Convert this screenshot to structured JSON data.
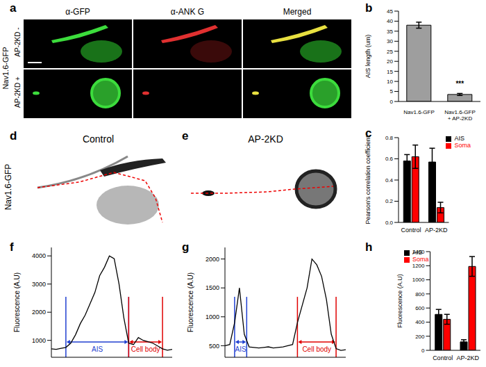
{
  "panels": {
    "a": {
      "label": "a",
      "columns": [
        "α-GFP",
        "α-ANK G",
        "Merged"
      ],
      "row_group": "Nav1.6-GFP",
      "rows": [
        "AP-2KD -",
        "AP-2KD +"
      ]
    },
    "d": {
      "label": "d",
      "title": "Control",
      "row_label": "Nav1.6-GFP"
    },
    "e": {
      "label": "e",
      "title": "AP-2KD"
    }
  },
  "chart_data": [
    {
      "panel": "b",
      "type": "bar",
      "categories": [
        "Nav1.6-GFP",
        "Nav1.6-GFP + AP-2KD"
      ],
      "values": [
        38,
        3.5
      ],
      "errors": [
        1.5,
        0.5
      ],
      "color": "#9e9e9e",
      "y_label": "AIS length (um)",
      "ylim": [
        0,
        45
      ],
      "yticks": [
        0,
        5,
        10,
        15,
        20,
        25,
        30,
        35,
        40,
        45
      ],
      "annotations": [
        {
          "category": "Nav1.6-GFP + AP-2KD",
          "text": "***"
        }
      ]
    },
    {
      "panel": "c",
      "type": "bar",
      "categories": [
        "Control",
        "AP-2KD"
      ],
      "series": [
        {
          "name": "AIS",
          "color": "#000000",
          "values": [
            0.58,
            0.57
          ],
          "errors": [
            0.06,
            0.13
          ]
        },
        {
          "name": "Soma",
          "color": "#ff0000",
          "values": [
            0.62,
            0.14
          ],
          "errors": [
            0.11,
            0.05
          ]
        }
      ],
      "y_label": "Pearson's correlation coefficient",
      "ylim": [
        0,
        0.8
      ],
      "yticks": [
        {
          "value": 0,
          "label": "0.0"
        },
        0.2,
        0.4,
        0.6,
        0.8
      ],
      "legend": "upper right"
    },
    {
      "panel": "f",
      "type": "line",
      "x": [
        0,
        4,
        8,
        12,
        16,
        20,
        24,
        28,
        32,
        36,
        40,
        44,
        48,
        52,
        56,
        60,
        64,
        68,
        72,
        76,
        80,
        84,
        88,
        92,
        96,
        100
      ],
      "values": [
        700,
        680,
        720,
        750,
        900,
        1200,
        1600,
        1900,
        2300,
        2700,
        3300,
        3600,
        4000,
        3900,
        3000,
        1800,
        900,
        850,
        1100,
        1000,
        950,
        900,
        800,
        700,
        650,
        680
      ],
      "color": "#000000",
      "y_label": "Fluorescence (A.U)",
      "xlim": [
        0,
        100
      ],
      "ylim": [
        400,
        4300
      ],
      "yticks": [
        1000,
        2000,
        3000,
        4000
      ],
      "tick_labels": "y",
      "regions": [
        {
          "label": "AIS",
          "start": 12,
          "end": 64,
          "color": "#1f3fd0"
        },
        {
          "label": "Cell body",
          "start": 64,
          "end": 92,
          "color": "#e00000"
        }
      ]
    },
    {
      "panel": "g",
      "type": "line",
      "x": [
        0,
        4,
        8,
        12,
        16,
        20,
        24,
        28,
        32,
        36,
        40,
        44,
        48,
        52,
        56,
        60,
        64,
        68,
        72,
        76,
        80,
        84,
        88,
        92,
        96,
        100
      ],
      "values": [
        500,
        520,
        900,
        1500,
        700,
        480,
        470,
        460,
        470,
        480,
        460,
        470,
        480,
        500,
        520,
        900,
        1200,
        1500,
        2000,
        1900,
        1700,
        1300,
        700,
        450,
        420,
        430
      ],
      "color": "#000000",
      "y_label": "Fluorescence (A.U)",
      "xlim": [
        0,
        100
      ],
      "ylim": [
        300,
        2200
      ],
      "yticks": [
        500,
        1000,
        1500,
        2000
      ],
      "tick_labels": "y",
      "regions": [
        {
          "label": "AIS",
          "start": 8,
          "end": 18,
          "color": "#1f3fd0"
        },
        {
          "label": "Cell body",
          "start": 60,
          "end": 92,
          "color": "#e00000"
        }
      ]
    },
    {
      "panel": "h",
      "type": "bar",
      "categories": [
        "Control",
        "AP-2KD"
      ],
      "series": [
        {
          "name": "AIS",
          "color": "#000000",
          "values": [
            510,
            120
          ],
          "errors": [
            70,
            30
          ]
        },
        {
          "name": "Soma",
          "color": "#ff0000",
          "values": [
            440,
            1190
          ],
          "errors": [
            70,
            140
          ]
        }
      ],
      "y_label": "Fluorescence (A.U)",
      "ylim": [
        0,
        1400
      ],
      "yticks": [
        0,
        200,
        400,
        600,
        800,
        1000,
        1200,
        1400
      ],
      "legend": "upper left"
    }
  ]
}
